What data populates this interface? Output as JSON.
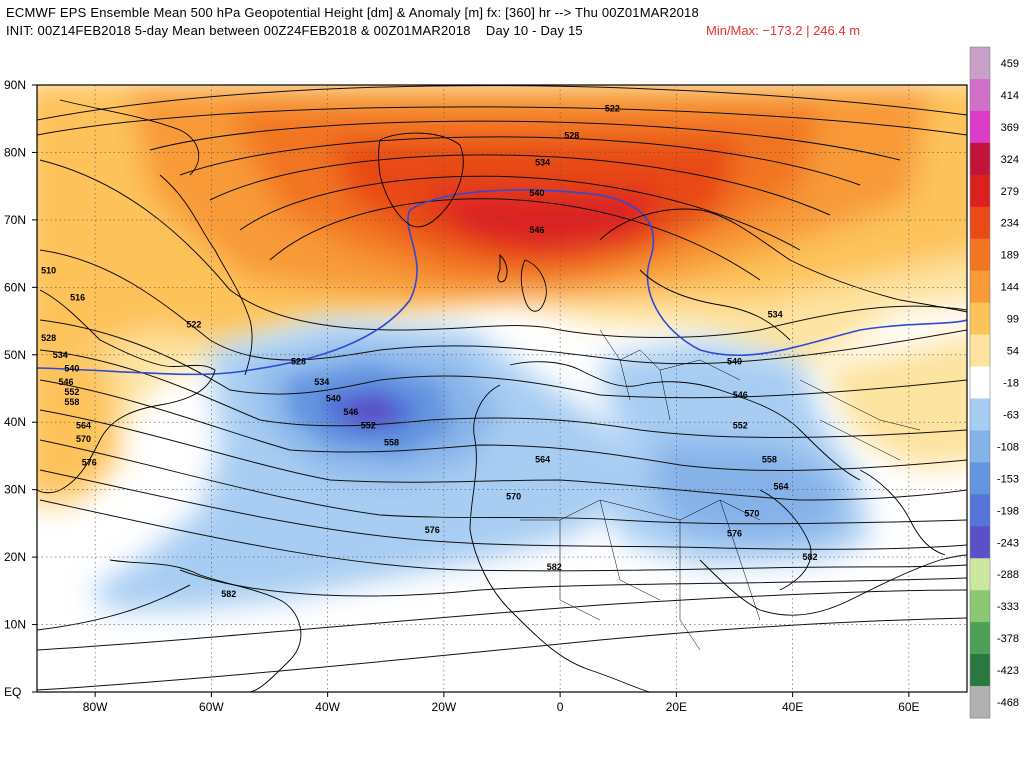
{
  "header": {
    "line1": "ECMWF EPS Ensemble Mean 500 hPa Geopotential Height [dm] & Anomaly [m] fx: [360] hr --> Thu 00Z01MAR2018",
    "line2": "INIT: 00Z14FEB2018 5-day Mean between 00Z24FEB2018 & 00Z01MAR2018    Day 10 - Day 15",
    "minmax": "Min/Max: −173.2 | 246.4 m",
    "minmax_color": "#e8322a"
  },
  "map": {
    "lat_labels": [
      "90N",
      "80N",
      "70N",
      "60N",
      "50N",
      "40N",
      "30N",
      "20N",
      "10N",
      "EQ"
    ],
    "lat_values": [
      90,
      80,
      70,
      60,
      50,
      40,
      30,
      20,
      10,
      0
    ],
    "lon_labels": [
      "80W",
      "60W",
      "40W",
      "20W",
      "0",
      "20E",
      "40E",
      "60E"
    ],
    "lon_values": [
      -80,
      -60,
      -40,
      -20,
      0,
      20,
      40,
      60
    ],
    "lon_range": [
      -90,
      70
    ],
    "lat_range": [
      0,
      90
    ],
    "contour_labels": [
      {
        "text": "522",
        "lon": 9,
        "lat": 86.5
      },
      {
        "text": "528",
        "lon": 2,
        "lat": 82.5
      },
      {
        "text": "534",
        "lon": -3,
        "lat": 78.5
      },
      {
        "text": "540",
        "lon": -4,
        "lat": 74
      },
      {
        "text": "546",
        "lon": -4,
        "lat": 68.5
      },
      {
        "text": "510",
        "lon": -88,
        "lat": 62.5
      },
      {
        "text": "516",
        "lon": -83,
        "lat": 58.5
      },
      {
        "text": "522",
        "lon": -63,
        "lat": 54.5
      },
      {
        "text": "528",
        "lon": -88,
        "lat": 52.5
      },
      {
        "text": "534",
        "lon": -86,
        "lat": 50
      },
      {
        "text": "540",
        "lon": -84,
        "lat": 48
      },
      {
        "text": "546",
        "lon": -85,
        "lat": 46
      },
      {
        "text": "552",
        "lon": -84,
        "lat": 44.5
      },
      {
        "text": "558",
        "lon": -84,
        "lat": 43
      },
      {
        "text": "564",
        "lon": -82,
        "lat": 39.5
      },
      {
        "text": "570",
        "lon": -82,
        "lat": 37.5
      },
      {
        "text": "576",
        "lon": -81,
        "lat": 34
      },
      {
        "text": "528",
        "lon": -45,
        "lat": 49
      },
      {
        "text": "534",
        "lon": -41,
        "lat": 46
      },
      {
        "text": "540",
        "lon": -39,
        "lat": 43.5
      },
      {
        "text": "546",
        "lon": -36,
        "lat": 41.5
      },
      {
        "text": "552",
        "lon": -33,
        "lat": 39.5
      },
      {
        "text": "558",
        "lon": -29,
        "lat": 37
      },
      {
        "text": "564",
        "lon": -3,
        "lat": 34.5
      },
      {
        "text": "570",
        "lon": -8,
        "lat": 29
      },
      {
        "text": "576",
        "lon": -22,
        "lat": 24
      },
      {
        "text": "582",
        "lon": -1,
        "lat": 18.5
      },
      {
        "text": "582",
        "lon": -57,
        "lat": 14.5
      },
      {
        "text": "534",
        "lon": 37,
        "lat": 56
      },
      {
        "text": "540",
        "lon": 30,
        "lat": 49
      },
      {
        "text": "546",
        "lon": 31,
        "lat": 44
      },
      {
        "text": "552",
        "lon": 31,
        "lat": 39.5
      },
      {
        "text": "558",
        "lon": 36,
        "lat": 34.5
      },
      {
        "text": "564",
        "lon": 38,
        "lat": 30.5
      },
      {
        "text": "570",
        "lon": 33,
        "lat": 26.5
      },
      {
        "text": "576",
        "lon": 30,
        "lat": 23.5
      },
      {
        "text": "582",
        "lon": 43,
        "lat": 20
      }
    ]
  },
  "colorbar": {
    "labels": [
      "459",
      "414",
      "369",
      "324",
      "279",
      "234",
      "189",
      "144",
      "99",
      "54",
      "-18",
      "-63",
      "-108",
      "-153",
      "-198",
      "-243",
      "-288",
      "-333",
      "-378",
      "-423",
      "-468"
    ],
    "colors": [
      "#c8a0c8",
      "#d070c8",
      "#dc3cc8",
      "#c0143c",
      "#dc2020",
      "#e84a18",
      "#f27524",
      "#f89a38",
      "#fdc35a",
      "#fde3a0",
      "#ffffff",
      "#a8cdf3",
      "#86b2ea",
      "#6595e0",
      "#5575d8",
      "#5c50c8",
      "#cde7a0",
      "#8cc873",
      "#4ca056",
      "#2a7840",
      "#b0b0b0"
    ]
  }
}
